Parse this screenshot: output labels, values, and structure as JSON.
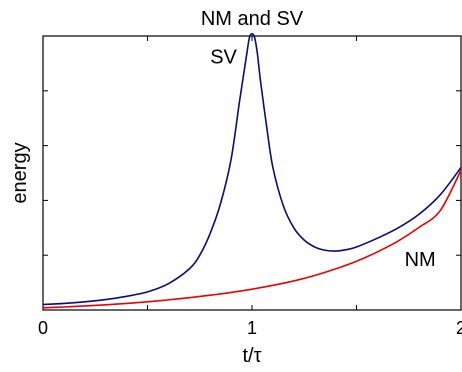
{
  "chart_data": {
    "type": "line",
    "title": "NM and SV",
    "xlabel": "t/τ",
    "ylabel": "energy",
    "xlim": [
      0,
      2
    ],
    "ylim": [
      0,
      1
    ],
    "grid": false,
    "x_ticks": [
      {
        "value": 0,
        "label": "0"
      },
      {
        "value": 1,
        "label": "1"
      },
      {
        "value": 2,
        "label": "2"
      }
    ],
    "x_minor_ticks": [
      0.5,
      1.5
    ],
    "y_ticks": [
      0.2,
      0.4,
      0.6,
      0.8
    ],
    "series": [
      {
        "name": "SV",
        "color": "#0b0b7a",
        "points": [
          [
            0.0,
            0.02
          ],
          [
            0.1,
            0.024
          ],
          [
            0.2,
            0.03
          ],
          [
            0.3,
            0.038
          ],
          [
            0.4,
            0.05
          ],
          [
            0.5,
            0.066
          ],
          [
            0.6,
            0.096
          ],
          [
            0.7,
            0.15
          ],
          [
            0.75,
            0.2
          ],
          [
            0.8,
            0.28
          ],
          [
            0.85,
            0.39
          ],
          [
            0.9,
            0.55
          ],
          [
            0.94,
            0.76
          ],
          [
            0.96,
            0.86
          ],
          [
            0.975,
            0.935
          ],
          [
            0.99,
            1.0
          ],
          [
            1.01,
            1.0
          ],
          [
            1.025,
            0.94
          ],
          [
            1.04,
            0.84
          ],
          [
            1.07,
            0.67
          ],
          [
            1.1,
            0.52
          ],
          [
            1.15,
            0.38
          ],
          [
            1.2,
            0.3
          ],
          [
            1.25,
            0.255
          ],
          [
            1.3,
            0.23
          ],
          [
            1.35,
            0.218
          ],
          [
            1.4,
            0.215
          ],
          [
            1.45,
            0.22
          ],
          [
            1.5,
            0.23
          ],
          [
            1.6,
            0.262
          ],
          [
            1.7,
            0.3
          ],
          [
            1.8,
            0.35
          ],
          [
            1.9,
            0.42
          ],
          [
            2.0,
            0.52
          ]
        ]
      },
      {
        "name": "NM",
        "color": "#ee0000",
        "points": [
          [
            0.0,
            0.008
          ],
          [
            0.1,
            0.011
          ],
          [
            0.2,
            0.015
          ],
          [
            0.3,
            0.019
          ],
          [
            0.4,
            0.024
          ],
          [
            0.5,
            0.03
          ],
          [
            0.6,
            0.037
          ],
          [
            0.7,
            0.045
          ],
          [
            0.8,
            0.054
          ],
          [
            0.9,
            0.064
          ],
          [
            1.0,
            0.076
          ],
          [
            1.1,
            0.09
          ],
          [
            1.2,
            0.106
          ],
          [
            1.3,
            0.126
          ],
          [
            1.4,
            0.15
          ],
          [
            1.5,
            0.178
          ],
          [
            1.6,
            0.212
          ],
          [
            1.7,
            0.252
          ],
          [
            1.8,
            0.302
          ],
          [
            1.9,
            0.362
          ],
          [
            2.0,
            0.51
          ]
        ]
      }
    ],
    "annotations": [
      {
        "text": "SV",
        "x": 0.8,
        "y": 0.9
      },
      {
        "text": "NM",
        "x": 1.73,
        "y": 0.16
      }
    ]
  }
}
